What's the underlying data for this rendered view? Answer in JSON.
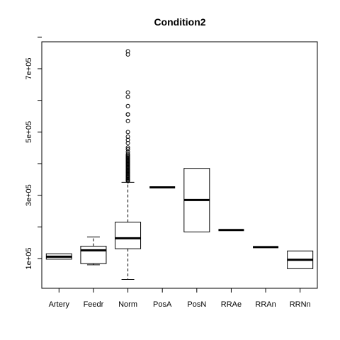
{
  "chart_data": {
    "type": "boxplot",
    "title": "Condition2",
    "xlabel": "",
    "ylabel": "",
    "ylim": [
      0,
      850000
    ],
    "y_ticks": [
      100000,
      300000,
      500000,
      700000
    ],
    "y_tick_labels": [
      "1e+05",
      "3e+05",
      "5e+05",
      "7e+05"
    ],
    "categories": [
      "Artery",
      "Feedr",
      "Norm",
      "PosA",
      "PosN",
      "RRAe",
      "RRAn",
      "RRNn"
    ],
    "boxes": [
      {
        "category": "Artery",
        "whisker_low": 98000,
        "q1": 98000,
        "median": 106000,
        "q3": 115000,
        "whisker_high": 115000,
        "outliers": []
      },
      {
        "category": "Feedr",
        "whisker_low": 80000,
        "q1": 84000,
        "median": 126000,
        "q3": 139000,
        "whisker_high": 168000,
        "outliers": []
      },
      {
        "category": "Norm",
        "whisker_low": 34000,
        "q1": 131000,
        "median": 164000,
        "q3": 215000,
        "whisker_high": 341000,
        "outliers": [
          345000,
          347000,
          350000,
          352000,
          355000,
          358000,
          360000,
          363000,
          366000,
          369000,
          372000,
          375000,
          378000,
          381000,
          384000,
          387000,
          390000,
          393000,
          396000,
          399000,
          402000,
          405000,
          408000,
          411000,
          414000,
          417000,
          420000,
          423000,
          426000,
          430000,
          437000,
          445000,
          451000,
          465000,
          475000,
          485000,
          500000,
          535000,
          555000,
          556000,
          582000,
          611000,
          625000,
          745000,
          755000
        ]
      },
      {
        "category": "PosA",
        "whisker_low": 325000,
        "q1": 325000,
        "median": 325000,
        "q3": 325000,
        "whisker_high": 325000,
        "outliers": []
      },
      {
        "category": "PosN",
        "whisker_low": 184000,
        "q1": 184000,
        "median": 285000,
        "q3": 385000,
        "whisker_high": 385000,
        "outliers": []
      },
      {
        "category": "RRAe",
        "whisker_low": 190000,
        "q1": 190000,
        "median": 190000,
        "q3": 190000,
        "whisker_high": 190000,
        "outliers": []
      },
      {
        "category": "RRAn",
        "whisker_low": 136000,
        "q1": 136000,
        "median": 136000,
        "q3": 136000,
        "whisker_high": 136000,
        "outliers": []
      },
      {
        "category": "RRNn",
        "whisker_low": 68000,
        "q1": 68000,
        "median": 96000,
        "q3": 124000,
        "whisker_high": 124000,
        "outliers": []
      }
    ],
    "colors": {
      "stroke": "#000000",
      "background": "#ffffff"
    }
  }
}
